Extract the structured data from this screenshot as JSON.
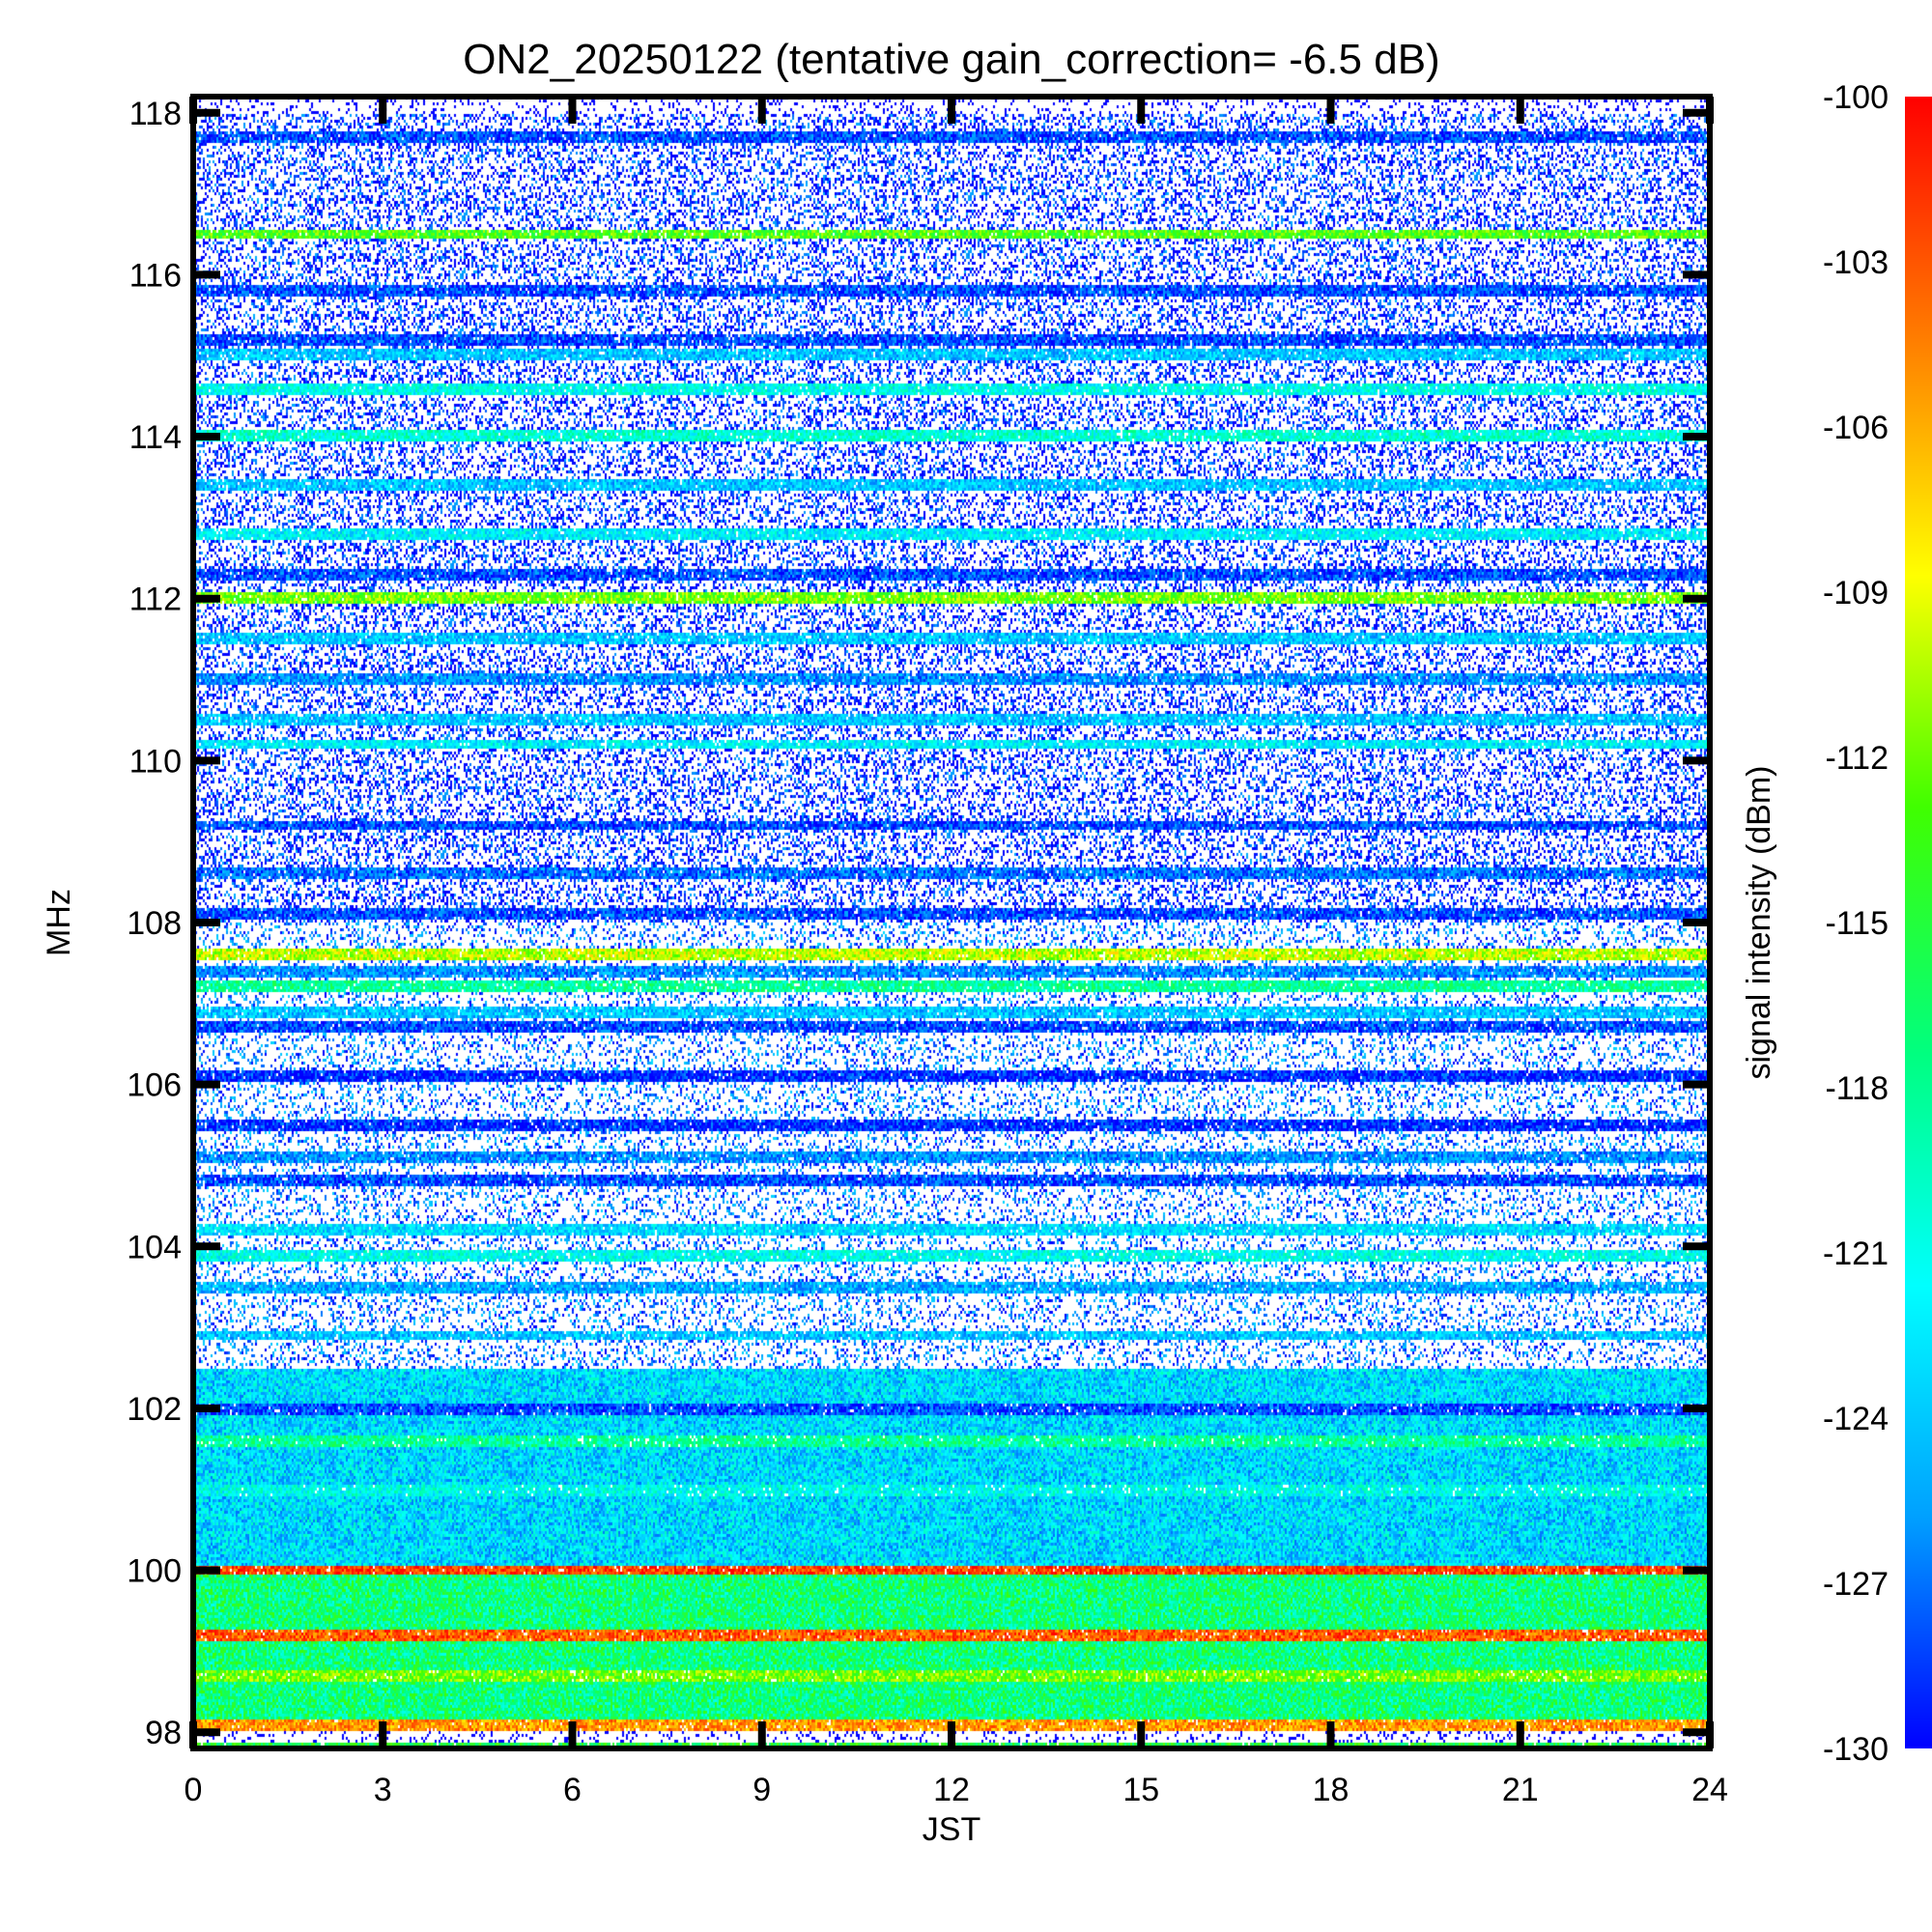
{
  "chart_data": {
    "type": "heatmap",
    "title": "ON2_20250122 (tentative gain_correction= -6.5 dB)",
    "xlabel": "JST",
    "ylabel": "MHz",
    "xlim": [
      0,
      24
    ],
    "ylim": [
      97.8,
      118.2
    ],
    "x_ticks": [
      "0",
      "3",
      "6",
      "9",
      "12",
      "15",
      "18",
      "21",
      "24"
    ],
    "y_ticks": [
      "98",
      "100",
      "102",
      "104",
      "106",
      "108",
      "110",
      "112",
      "114",
      "116",
      "118"
    ],
    "colorbar": {
      "label": "signal intensity (dBm)",
      "range": [
        -130,
        -100
      ],
      "ticks": [
        "-100",
        "-103",
        "-106",
        "-109",
        "-112",
        "-115",
        "-118",
        "-121",
        "-124",
        "-127",
        "-130"
      ],
      "colors": [
        "#0000ff",
        "#00a0ff",
        "#00ffff",
        "#00ff80",
        "#40ff00",
        "#ffff00",
        "#ff8000",
        "#ff0000"
      ]
    },
    "regions": [
      {
        "freq_range": [
          98.0,
          100.0
        ],
        "typical_dBm": -117
      },
      {
        "freq_range": [
          100.0,
          102.5
        ],
        "typical_dBm": -123
      },
      {
        "freq_range": [
          102.5,
          108.0
        ],
        "typical_dBm": -127
      },
      {
        "freq_range": [
          108.0,
          118.0
        ],
        "typical_dBm": -129
      }
    ],
    "bands": [
      {
        "freq": 97.8,
        "dBm": -115
      },
      {
        "freq": 98.1,
        "dBm": -105
      },
      {
        "freq": 98.7,
        "dBm": -112
      },
      {
        "freq": 99.2,
        "dBm": -103
      },
      {
        "freq": 100.0,
        "dBm": -102
      },
      {
        "freq": 101.0,
        "dBm": -121
      },
      {
        "freq": 101.6,
        "dBm": -118
      },
      {
        "freq": 102.0,
        "dBm": -128
      },
      {
        "freq": 102.9,
        "dBm": -124
      },
      {
        "freq": 103.5,
        "dBm": -125
      },
      {
        "freq": 103.9,
        "dBm": -121
      },
      {
        "freq": 104.2,
        "dBm": -123
      },
      {
        "freq": 104.8,
        "dBm": -128
      },
      {
        "freq": 105.1,
        "dBm": -126
      },
      {
        "freq": 105.5,
        "dBm": -129
      },
      {
        "freq": 106.1,
        "dBm": -129
      },
      {
        "freq": 106.7,
        "dBm": -128
      },
      {
        "freq": 106.9,
        "dBm": -124
      },
      {
        "freq": 107.2,
        "dBm": -118
      },
      {
        "freq": 107.4,
        "dBm": -126
      },
      {
        "freq": 107.6,
        "dBm": -110
      },
      {
        "freq": 108.1,
        "dBm": -128
      },
      {
        "freq": 108.6,
        "dBm": -127
      },
      {
        "freq": 109.2,
        "dBm": -128
      },
      {
        "freq": 110.2,
        "dBm": -122
      },
      {
        "freq": 110.5,
        "dBm": -124
      },
      {
        "freq": 111.0,
        "dBm": -126
      },
      {
        "freq": 111.5,
        "dBm": -124
      },
      {
        "freq": 112.0,
        "dBm": -112
      },
      {
        "freq": 112.3,
        "dBm": -128
      },
      {
        "freq": 112.8,
        "dBm": -122
      },
      {
        "freq": 113.4,
        "dBm": -124
      },
      {
        "freq": 114.0,
        "dBm": -120
      },
      {
        "freq": 114.6,
        "dBm": -121
      },
      {
        "freq": 115.0,
        "dBm": -124
      },
      {
        "freq": 115.2,
        "dBm": -128
      },
      {
        "freq": 115.8,
        "dBm": -128
      },
      {
        "freq": 116.5,
        "dBm": -113
      },
      {
        "freq": 117.7,
        "dBm": -128
      }
    ]
  }
}
